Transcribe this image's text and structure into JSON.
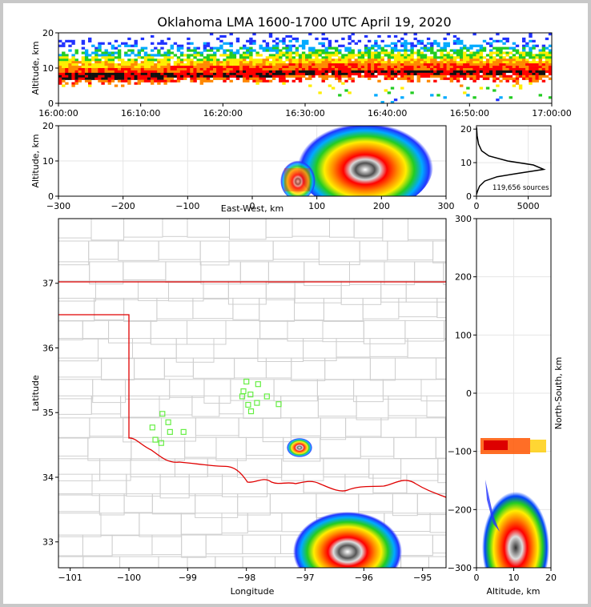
{
  "chart_data": [
    {
      "type": "heatmap",
      "panel": "altitude-time",
      "title": "Oklahoma LMA 1600-1700 UTC April 19, 2020",
      "ylabel": "Altitude, km",
      "ylim": [
        0,
        20
      ],
      "yticks": [
        "0",
        "10",
        "20"
      ],
      "xticks": [
        "16:00:00",
        "16:10:00",
        "16:20:00",
        "16:30:00",
        "16:40:00",
        "16:50:00",
        "17:00:00"
      ],
      "description_series": [
        {
          "name": "source density core altitude",
          "x": [
            "16:00",
            "16:10",
            "16:20",
            "16:30",
            "16:40",
            "16:50",
            "17:00"
          ],
          "values": [
            8,
            8,
            8.5,
            9,
            9,
            9,
            9
          ]
        }
      ]
    },
    {
      "type": "heatmap",
      "panel": "altitude-east-west",
      "xlabel": "East-West, km",
      "ylabel": "Altitude, km",
      "xlim": [
        -300,
        300
      ],
      "ylim": [
        0,
        20
      ],
      "xticks": [
        "−300",
        "−200",
        "−100",
        "0",
        "100",
        "200",
        "300"
      ],
      "yticks": [
        "0",
        "10",
        "20"
      ]
    },
    {
      "type": "line",
      "panel": "altitude-histogram",
      "annotation": "119,656 sources",
      "xlim": [
        0,
        7200
      ],
      "ylim": [
        0,
        21
      ],
      "xticks": [
        "0",
        "5000"
      ],
      "yticks": [
        "0",
        "10",
        "20"
      ],
      "x": [
        0,
        100,
        300,
        800,
        2000,
        4000,
        6500,
        5500,
        3000,
        1200,
        500,
        200,
        60,
        10
      ],
      "y": [
        0.5,
        1.5,
        3,
        4.5,
        5.8,
        6.8,
        8,
        9.3,
        10.5,
        12,
        13.5,
        15.5,
        18,
        20.5
      ]
    },
    {
      "type": "scatter",
      "panel": "plan-view",
      "xlabel": "Longitude",
      "ylabel": "Latitude",
      "xlim": [
        -101.2,
        -94.6
      ],
      "ylim": [
        32.6,
        38.0
      ],
      "xticks": [
        "−101",
        "−100",
        "−99",
        "−98",
        "−97",
        "−96",
        "−95"
      ],
      "yticks": [
        "33",
        "34",
        "35",
        "36",
        "37"
      ],
      "stations": [
        [
          -98.0,
          35.48
        ],
        [
          -97.8,
          35.44
        ],
        [
          -98.05,
          35.33
        ],
        [
          -97.93,
          35.28
        ],
        [
          -98.07,
          35.25
        ],
        [
          -97.65,
          35.25
        ],
        [
          -97.82,
          35.15
        ],
        [
          -97.97,
          35.12
        ],
        [
          -97.45,
          35.13
        ],
        [
          -97.92,
          35.02
        ],
        [
          -99.43,
          34.98
        ],
        [
          -99.33,
          34.85
        ],
        [
          -99.6,
          34.77
        ],
        [
          -99.3,
          34.7
        ],
        [
          -99.07,
          34.7
        ],
        [
          -99.55,
          34.58
        ],
        [
          -99.45,
          34.53
        ]
      ]
    },
    {
      "type": "heatmap",
      "panel": "north-south-altitude",
      "xlabel": "Altitude, km",
      "ylabel": "North-South, km",
      "xlim": [
        0,
        20
      ],
      "ylim": [
        -300,
        300
      ],
      "xticks": [
        "0",
        "10",
        "20"
      ],
      "yticks": [
        "300",
        "200",
        "100",
        "0",
        "−100",
        "−200",
        "−300"
      ]
    }
  ]
}
